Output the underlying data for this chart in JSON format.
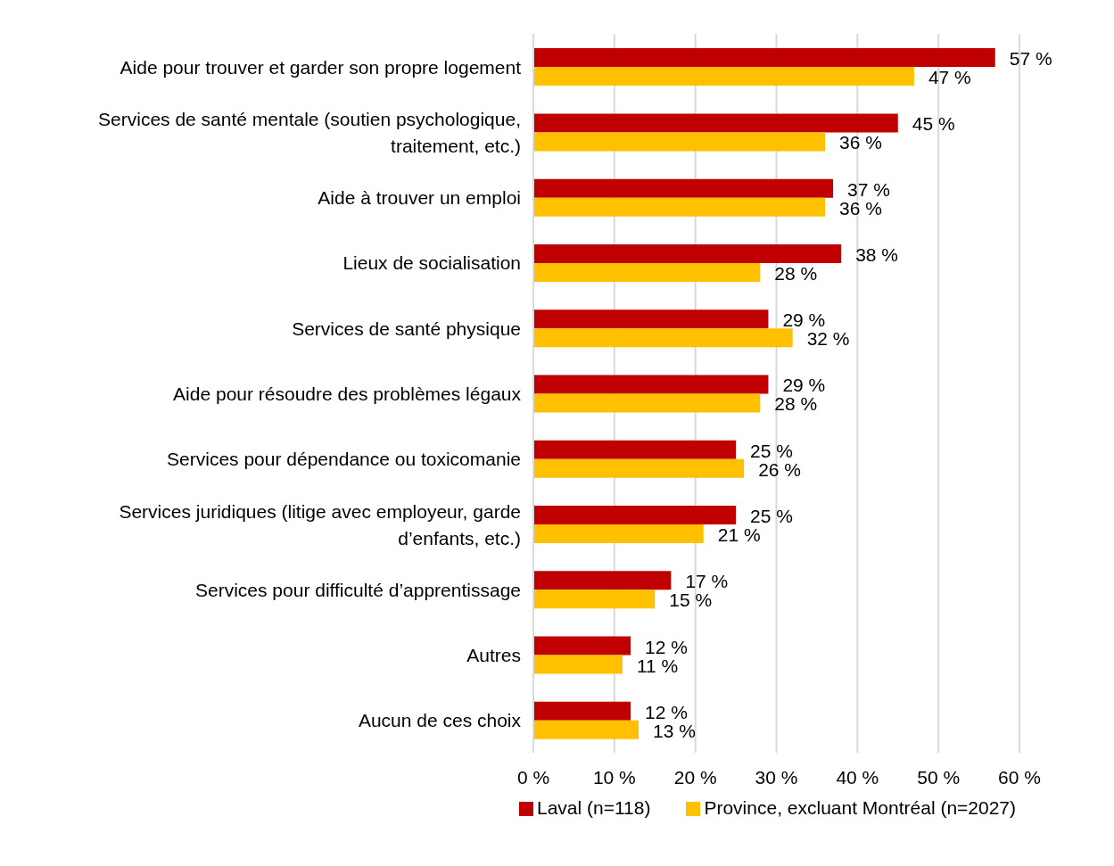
{
  "chart_data": {
    "type": "bar",
    "orientation": "horizontal",
    "categories": [
      "Aide pour trouver et garder son propre logement",
      "Services de santé mentale (soutien psychologique, traitement, etc.)",
      "Aide à trouver un emploi",
      "Lieux de socialisation",
      "Services de santé physique",
      "Aide pour résoudre des problèmes légaux",
      "Services pour dépendance ou toxicomanie",
      "Services juridiques (litige avec employeur, garde d’enfants, etc.)",
      "Services pour difficulté d’apprentissage",
      "Autres",
      "Aucun de ces choix"
    ],
    "series": [
      {
        "name": "Laval (n=118)",
        "color": "#c00000",
        "values": [
          57,
          45,
          37,
          38,
          29,
          29,
          25,
          25,
          17,
          12,
          12
        ],
        "value_labels": [
          "57 %",
          "45 %",
          "37 %",
          "38 %",
          "29 %",
          "29 %",
          "25 %",
          "25 %",
          "17 %",
          "12 %",
          "12 %"
        ]
      },
      {
        "name": "Province, excluant Montréal (n=2027)",
        "color": "#ffc000",
        "values": [
          47,
          36,
          36,
          28,
          32,
          28,
          26,
          21,
          15,
          11,
          13
        ],
        "value_labels": [
          "47 %",
          "36 %",
          "36 %",
          "28 %",
          "32 %",
          "28 %",
          "26 %",
          "21 %",
          "15 %",
          "11 %",
          "13 %"
        ]
      }
    ],
    "xlim": [
      0,
      60
    ],
    "xticks": [
      {
        "value": 0,
        "label": "0 %"
      },
      {
        "value": 10,
        "label": "10 %"
      },
      {
        "value": 20,
        "label": "20 %"
      },
      {
        "value": 30,
        "label": "30 %"
      },
      {
        "value": 40,
        "label": "40 %"
      },
      {
        "value": 50,
        "label": "50 %"
      },
      {
        "value": 60,
        "label": "60 %"
      }
    ],
    "grid": "x",
    "legend": "bottom"
  }
}
